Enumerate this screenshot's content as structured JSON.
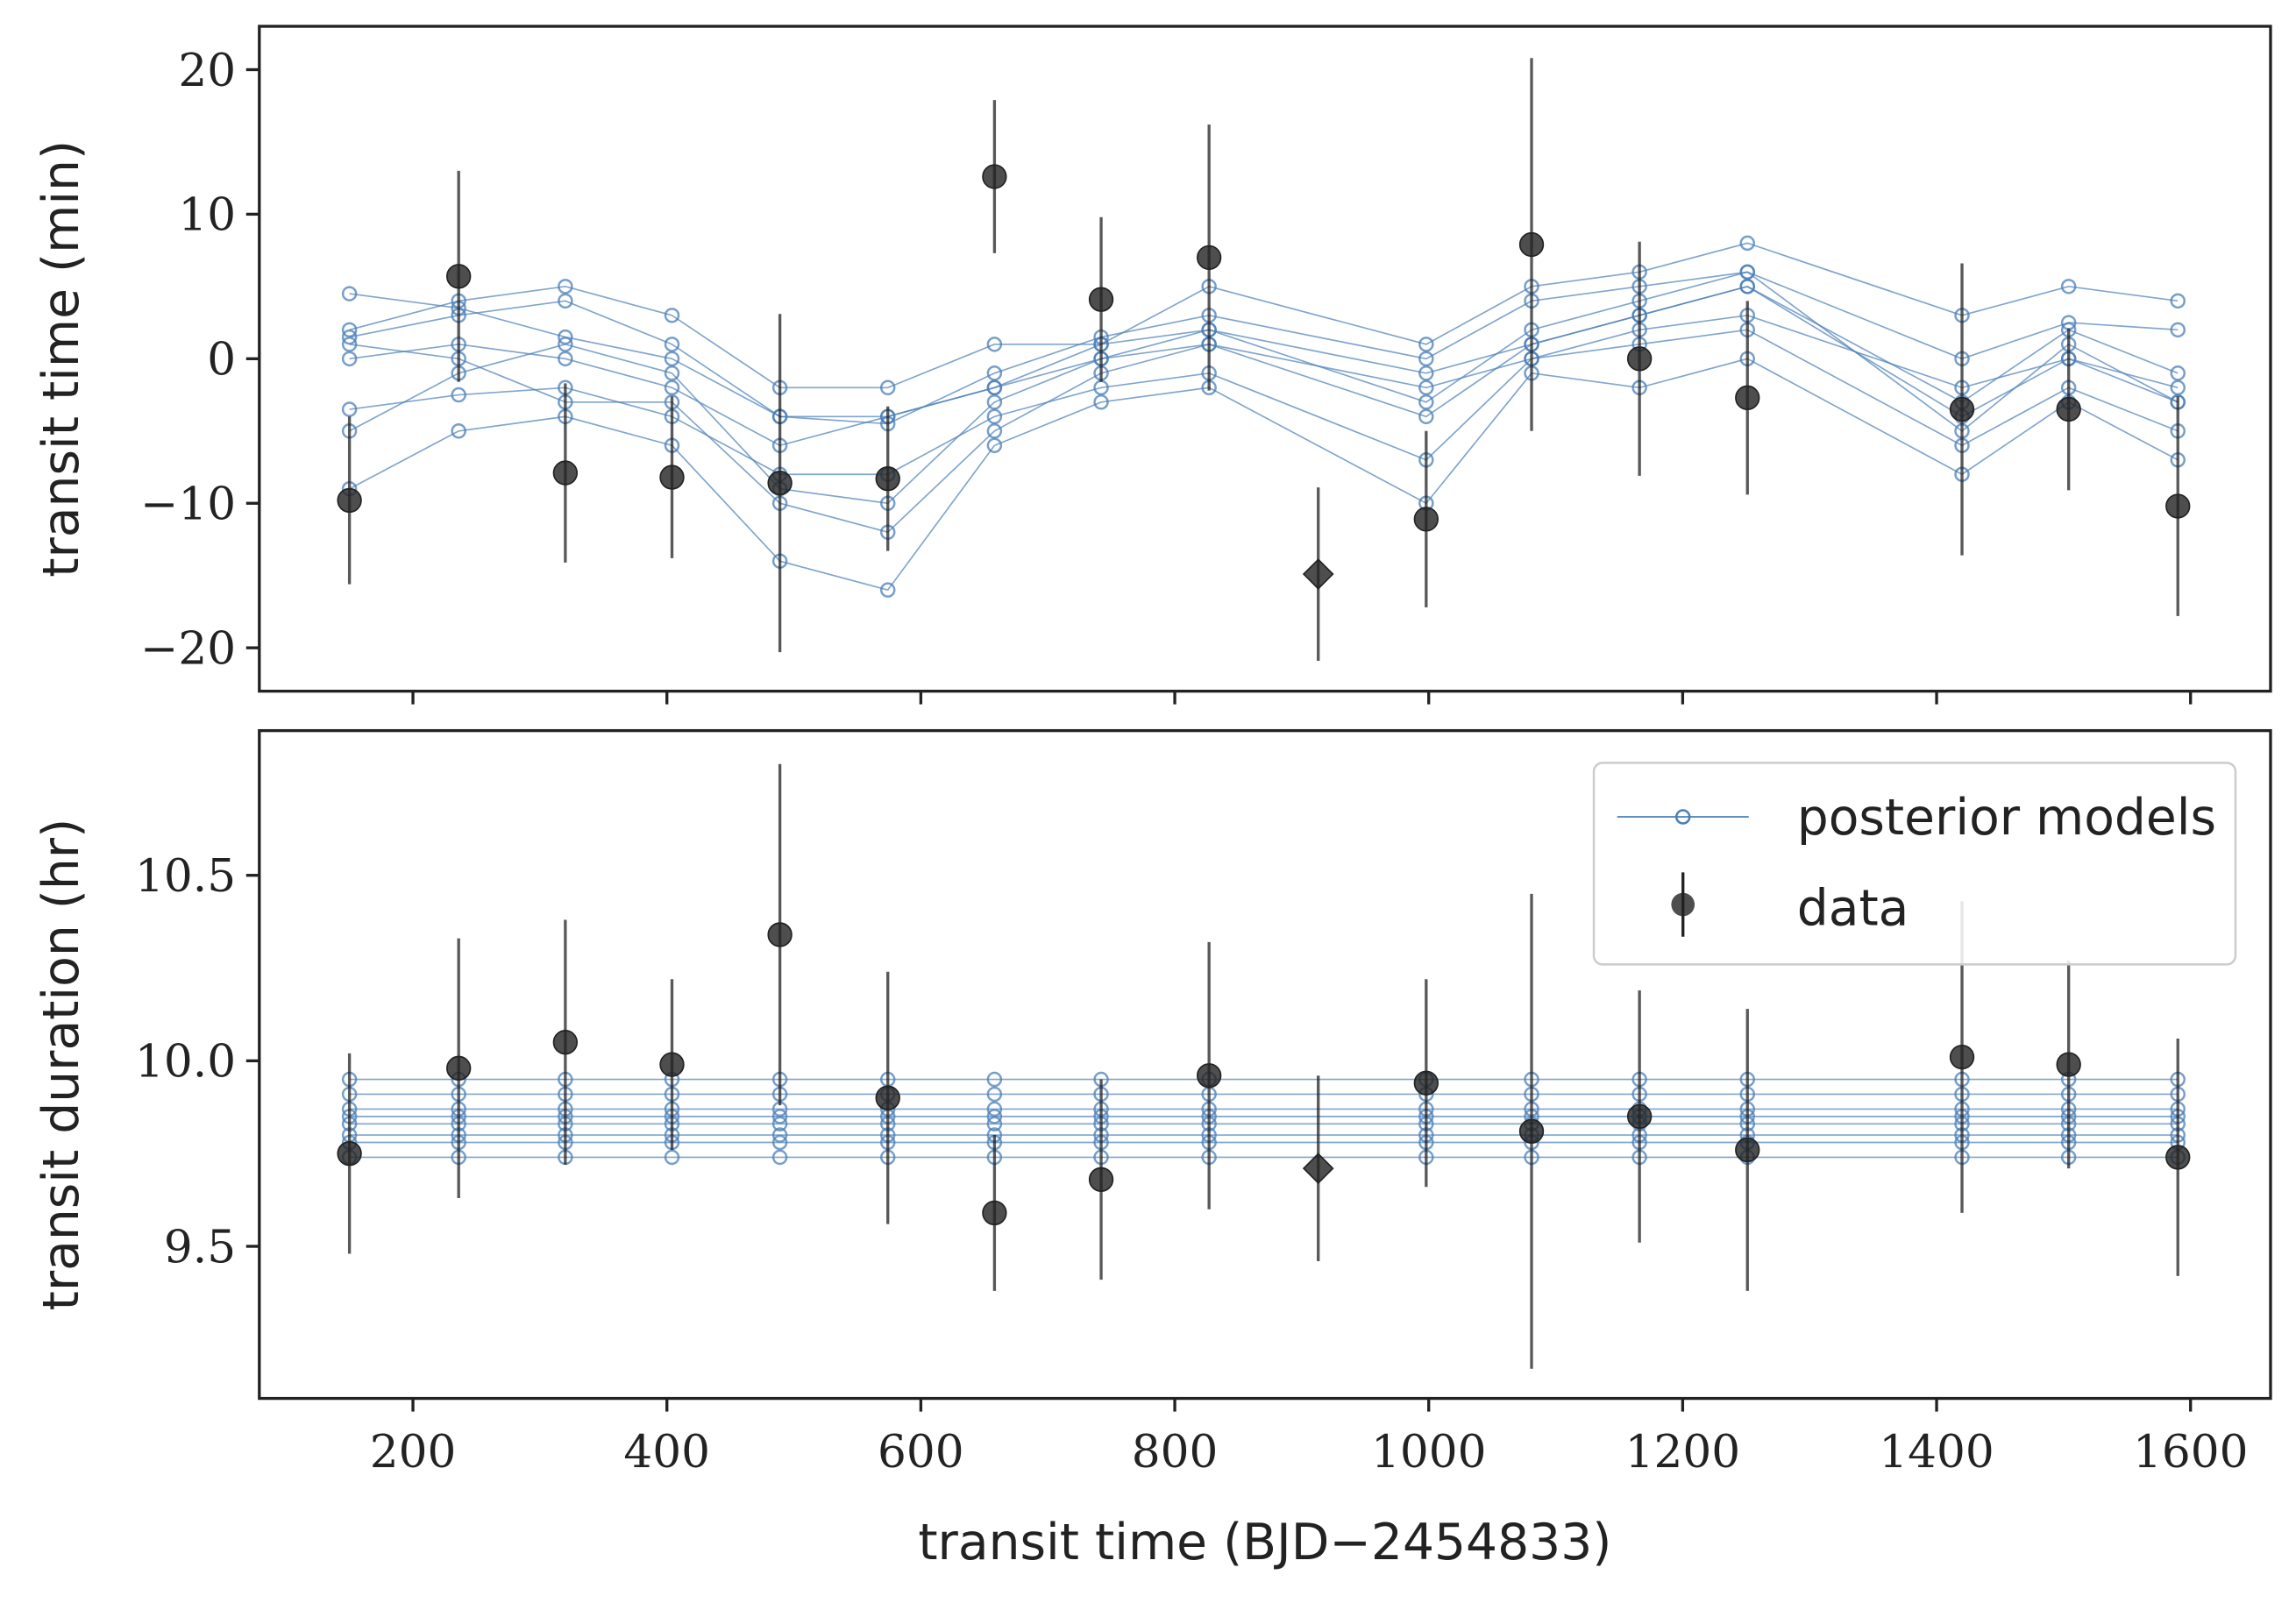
{
  "chart_data": [
    {
      "type": "errorbar",
      "ylabel": "transit time (min)",
      "xlim": [
        79,
        1663
      ],
      "xticks": [
        200,
        400,
        600,
        800,
        1000,
        1200,
        1400,
        1600
      ],
      "ylim": [
        -23,
        23
      ],
      "yticks": [
        {
          "value": -20,
          "label": "−20"
        },
        {
          "value": -10,
          "label": "−10"
        },
        0,
        10,
        20
      ],
      "model_color": "#4a7fb8",
      "model_x": [
        150,
        236,
        320,
        404,
        489,
        574,
        658,
        742,
        827,
        998,
        1081,
        1166,
        1251,
        1420,
        1504,
        1590
      ],
      "models": [
        [
          1.5,
          3,
          4,
          1,
          -4,
          -4,
          -2,
          1,
          2,
          -1,
          1,
          3,
          5,
          -3,
          2,
          -1
        ],
        [
          -5,
          -1,
          1,
          -1,
          -9,
          -10,
          -3,
          0,
          2,
          -3,
          2,
          4,
          6,
          -5,
          1,
          -3
        ],
        [
          2,
          4,
          5,
          3,
          -2,
          -2,
          1,
          1,
          5,
          1,
          5,
          6,
          8,
          3,
          5,
          4
        ],
        [
          -9,
          -5,
          -4,
          -6,
          -14,
          -16,
          -6,
          -3,
          -2,
          -10,
          -1,
          -2,
          0,
          -8,
          -3,
          -7
        ],
        [
          0,
          1,
          0,
          -2,
          -6,
          -4,
          -2,
          0,
          1,
          -2,
          0,
          2,
          3,
          -2,
          0,
          -2
        ],
        [
          1,
          0,
          -3,
          -3,
          -10,
          -12,
          -5,
          -1,
          1,
          -4,
          1,
          3,
          5,
          -4,
          0,
          -3
        ],
        [
          4.5,
          3.5,
          1.5,
          0,
          -4,
          -4.5,
          -1,
          1.5,
          3,
          0,
          4,
          5,
          6,
          0,
          2.5,
          2
        ],
        [
          -3.5,
          -2.5,
          -2,
          -4,
          -8,
          -8,
          -4,
          -2,
          -1,
          -7,
          0,
          1,
          2,
          -6,
          -2,
          -5
        ]
      ],
      "data_color": "#222222",
      "x": [
        150,
        236,
        320,
        404,
        489,
        574,
        658,
        742,
        827,
        913,
        998,
        1081,
        1166,
        1251,
        1420,
        1504,
        1590
      ],
      "values": [
        -9.8,
        5.7,
        -7.9,
        -8.2,
        -8.6,
        -8.3,
        12.6,
        4.1,
        7.0,
        -14.9,
        -11.1,
        7.9,
        0,
        -2.7,
        -3.5,
        -3.5,
        -10.2
      ],
      "errors": [
        5.8,
        7.3,
        6.2,
        5.6,
        11.7,
        5,
        5.3,
        5.7,
        9.2,
        6,
        6.1,
        12.9,
        8.1,
        6.7,
        10.1,
        5.6,
        7.6
      ],
      "markers": [
        "o",
        "o",
        "o",
        "o",
        "o",
        "o",
        "o",
        "o",
        "o",
        "D",
        "o",
        "o",
        "o",
        "o",
        "o",
        "o",
        "o"
      ]
    },
    {
      "type": "errorbar",
      "ylabel": "transit duration (hr)",
      "xlabel": "transit time (BJD−2454833)",
      "xlim": [
        79,
        1663
      ],
      "xticks": [
        200,
        400,
        600,
        800,
        1000,
        1200,
        1400,
        1600
      ],
      "ylim": [
        9.09,
        10.89
      ],
      "yticks": [
        9.5,
        {
          "value": 10,
          "label": "10.0"
        },
        10.5
      ],
      "model_color": "#4a7fb8",
      "model_x": [
        150,
        236,
        320,
        404,
        489,
        574,
        658,
        742,
        827,
        998,
        1081,
        1166,
        1251,
        1420,
        1504,
        1590
      ],
      "models": [
        [
          9.74,
          9.74,
          9.74,
          9.74,
          9.74,
          9.74,
          9.74,
          9.74,
          9.74,
          9.74,
          9.74,
          9.74,
          9.74,
          9.74,
          9.74,
          9.74
        ],
        [
          9.78,
          9.78,
          9.78,
          9.78,
          9.78,
          9.78,
          9.78,
          9.78,
          9.78,
          9.78,
          9.78,
          9.78,
          9.78,
          9.78,
          9.78,
          9.78
        ],
        [
          9.8,
          9.8,
          9.8,
          9.8,
          9.8,
          9.8,
          9.8,
          9.8,
          9.8,
          9.8,
          9.8,
          9.8,
          9.8,
          9.8,
          9.8,
          9.8
        ],
        [
          9.83,
          9.83,
          9.83,
          9.83,
          9.83,
          9.83,
          9.83,
          9.83,
          9.83,
          9.83,
          9.83,
          9.83,
          9.83,
          9.83,
          9.83,
          9.83
        ],
        [
          9.85,
          9.85,
          9.85,
          9.85,
          9.85,
          9.85,
          9.85,
          9.85,
          9.85,
          9.85,
          9.85,
          9.85,
          9.85,
          9.85,
          9.85,
          9.85
        ],
        [
          9.87,
          9.87,
          9.87,
          9.87,
          9.87,
          9.87,
          9.87,
          9.87,
          9.87,
          9.87,
          9.87,
          9.87,
          9.87,
          9.87,
          9.87,
          9.87
        ],
        [
          9.91,
          9.91,
          9.91,
          9.91,
          9.91,
          9.91,
          9.91,
          9.91,
          9.91,
          9.91,
          9.91,
          9.91,
          9.91,
          9.91,
          9.91,
          9.91
        ],
        [
          9.95,
          9.95,
          9.95,
          9.95,
          9.95,
          9.95,
          9.95,
          9.95,
          9.95,
          9.95,
          9.95,
          9.95,
          9.95,
          9.95,
          9.95,
          9.95
        ]
      ],
      "data_color": "#222222",
      "x": [
        150,
        236,
        320,
        404,
        489,
        574,
        658,
        742,
        827,
        913,
        998,
        1081,
        1166,
        1251,
        1420,
        1504,
        1590
      ],
      "values": [
        9.75,
        9.98,
        10.05,
        9.99,
        10.34,
        9.9,
        9.59,
        9.68,
        9.96,
        9.71,
        9.94,
        9.81,
        9.85,
        9.76,
        10.01,
        9.99,
        9.74
      ],
      "errors": [
        0.27,
        0.35,
        0.33,
        0.23,
        0.46,
        0.34,
        0.21,
        0.27,
        0.36,
        0.25,
        0.28,
        0.64,
        0.34,
        0.38,
        0.42,
        0.28,
        0.32
      ],
      "markers": [
        "o",
        "o",
        "o",
        "o",
        "o",
        "o",
        "o",
        "o",
        "o",
        "D",
        "o",
        "o",
        "o",
        "o",
        "o",
        "o",
        "o"
      ],
      "legend": {
        "corner": "upper right",
        "entries": [
          "posterior models",
          "data"
        ]
      }
    }
  ]
}
